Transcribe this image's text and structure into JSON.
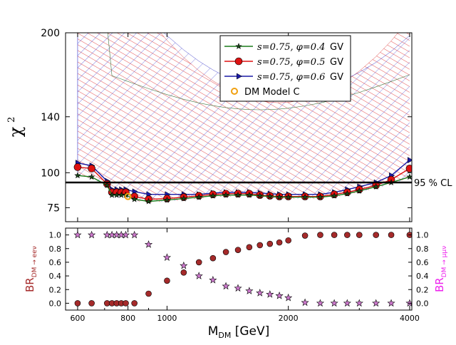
{
  "chart_data": [
    {
      "type": "line",
      "panel": "top",
      "ylabel": "χ",
      "ylabel_sup": "2",
      "ylim": [
        65,
        200
      ],
      "yscale": "linear",
      "xscale": "log",
      "xlim": [
        560,
        4050
      ],
      "yticks": [
        {
          "value": 75,
          "label": "75"
        },
        {
          "value": 100,
          "label": "100"
        },
        {
          "value": 140,
          "label": "140"
        },
        {
          "value": 200,
          "label": "200"
        }
      ],
      "x": [
        600,
        650,
        710,
        730,
        750,
        770,
        790,
        830,
        900,
        1000,
        1100,
        1200,
        1300,
        1400,
        1500,
        1600,
        1700,
        1800,
        1900,
        2000,
        2200,
        2400,
        2600,
        2800,
        3000,
        3300,
        3600,
        4000
      ],
      "series": [
        {
          "name": "s=0.75, φ=0.4  GV",
          "label_main": "s=0.75, φ=0.4",
          "label_unit": "GV",
          "color": "#1a7a1a",
          "marker": "star",
          "values": [
            98,
            97,
            91,
            84,
            84,
            84,
            84,
            81,
            79.5,
            80.5,
            81.5,
            82.5,
            83.5,
            84,
            84,
            84,
            83.5,
            83,
            82.5,
            82.5,
            82.5,
            82.5,
            83.5,
            85,
            87,
            90,
            93,
            97
          ]
        },
        {
          "name": "s=0.75, φ=0.5  GV",
          "label_main": "s=0.75, φ=0.5",
          "label_unit": "GV",
          "color": "#dd1111",
          "marker": "circle",
          "values": [
            104,
            103,
            92,
            86,
            86,
            86,
            86,
            83,
            81,
            81.5,
            82.5,
            83.5,
            84.5,
            85,
            85,
            85,
            84,
            83.5,
            83,
            83,
            83,
            83,
            84.5,
            86,
            88,
            91,
            95,
            103
          ]
        },
        {
          "name": "s=0.75, φ=0.6  GV",
          "label_main": "s=0.75, φ=0.6",
          "label_unit": "GV",
          "color": "#1a1aa6",
          "marker": "triangle-right",
          "values": [
            107,
            105,
            94,
            88,
            88,
            88,
            88,
            86.5,
            84.5,
            84.5,
            84.5,
            84.5,
            85.5,
            86,
            86,
            86,
            85.5,
            85,
            84.5,
            84.5,
            84.5,
            84.5,
            86,
            88,
            90,
            93,
            98,
            109
          ]
        },
        {
          "name": "DM Model C",
          "label_main": "DM Model C",
          "color": "#f0a010",
          "marker": "open-circle",
          "points": [
            {
              "x": 800,
              "y": 83
            }
          ]
        }
      ],
      "hline": {
        "value": 93,
        "label": "95 % CL",
        "color": "#000000"
      }
    },
    {
      "type": "scatter",
      "panel": "bottom",
      "xlabel": "M",
      "xlabel_sub": "DM",
      "xlabel_unit": "[GeV]",
      "xscale": "log",
      "xlim": [
        560,
        4050
      ],
      "ylim": [
        -0.1,
        1.1
      ],
      "xticks": [
        {
          "value": 600,
          "label": "600"
        },
        {
          "value": 800,
          "label": "800"
        },
        {
          "value": 1000,
          "label": "1000"
        },
        {
          "value": 2000,
          "label": "2000"
        },
        {
          "value": 4000,
          "label": "4000"
        }
      ],
      "yticks": [
        {
          "value": 0.0,
          "label": "0.0"
        },
        {
          "value": 0.2,
          "label": "0.2"
        },
        {
          "value": 0.4,
          "label": "0.4"
        },
        {
          "value": 0.6,
          "label": "0.6"
        },
        {
          "value": 0.8,
          "label": "0.8"
        },
        {
          "value": 1.0,
          "label": "1.0"
        }
      ],
      "left_ylabel": {
        "main": "BR",
        "sub": "DM → eeν",
        "color": "#a52a2a"
      },
      "right_ylabel": {
        "main": "BR",
        "sub": "DM → μμν",
        "color": "#ee22ee"
      },
      "series": [
        {
          "name": "BR(DM→eeν)",
          "color": "#a52a2a",
          "marker": "circle",
          "x": [
            600,
            650,
            710,
            730,
            750,
            770,
            790,
            830,
            900,
            1000,
            1100,
            1200,
            1300,
            1400,
            1500,
            1600,
            1700,
            1800,
            1900,
            2000,
            2200,
            2400,
            2600,
            2800,
            3000,
            3300,
            3600,
            4000
          ],
          "values": [
            0,
            0,
            0,
            0,
            0,
            0,
            0,
            0,
            0.14,
            0.33,
            0.45,
            0.6,
            0.66,
            0.75,
            0.78,
            0.82,
            0.85,
            0.87,
            0.89,
            0.92,
            0.99,
            1.0,
            1.0,
            1.0,
            1.0,
            1.0,
            1.0,
            1.0
          ]
        },
        {
          "name": "BR(DM→μμν)",
          "color": "#cc77cc",
          "marker": "star",
          "x": [
            600,
            650,
            710,
            730,
            750,
            770,
            790,
            830,
            900,
            1000,
            1100,
            1200,
            1300,
            1400,
            1500,
            1600,
            1700,
            1800,
            1900,
            2000,
            2200,
            2400,
            2600,
            2800,
            3000,
            3300,
            3600,
            4000
          ],
          "values": [
            1.0,
            1.0,
            1.0,
            1.0,
            1.0,
            1.0,
            1.0,
            1.0,
            0.86,
            0.67,
            0.55,
            0.4,
            0.34,
            0.25,
            0.22,
            0.18,
            0.15,
            0.13,
            0.11,
            0.08,
            0.01,
            0,
            0,
            0,
            0,
            0,
            0,
            0
          ]
        }
      ]
    }
  ]
}
